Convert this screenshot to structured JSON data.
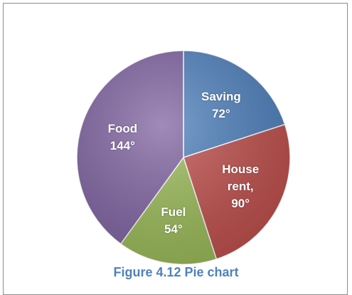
{
  "chart_data": {
    "type": "pie",
    "caption": "Figure 4.12 Pie chart",
    "categories": [
      "Saving",
      "House rent,",
      "Fuel",
      "Food"
    ],
    "values": [
      72,
      90,
      54,
      144
    ],
    "value_labels": [
      "72°",
      "90°",
      "54°",
      "144°"
    ],
    "colors": [
      "#4f81bd",
      "#c0504d",
      "#9bbb59",
      "#8064a2"
    ]
  }
}
